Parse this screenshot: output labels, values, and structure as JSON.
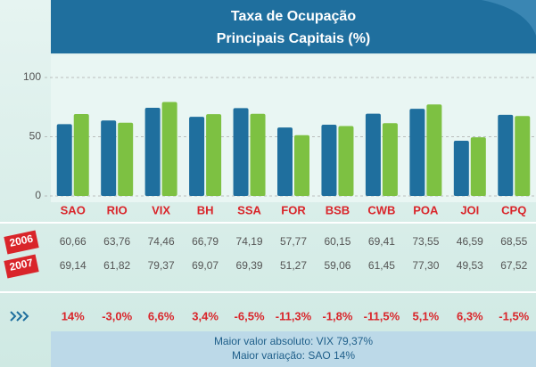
{
  "chart_data": {
    "type": "bar",
    "title": [
      "Taxa de Ocupação",
      "Principais Capitais (%)"
    ],
    "categories": [
      "SAO",
      "RIO",
      "VIX",
      "BH",
      "SSA",
      "FOR",
      "BSB",
      "CWB",
      "POA",
      "JOI",
      "CPQ"
    ],
    "series": [
      {
        "name": "2006",
        "color": "#1f6f9e",
        "values": [
          60.66,
          63.76,
          74.46,
          66.79,
          74.19,
          57.77,
          60.15,
          69.41,
          73.55,
          46.59,
          68.55
        ],
        "value_labels": [
          "60,66",
          "63,76",
          "74,46",
          "66,79",
          "74,19",
          "57,77",
          "60,15",
          "69,41",
          "73,55",
          "46,59",
          "68,55"
        ]
      },
      {
        "name": "2007",
        "color": "#7dc142",
        "values": [
          69.14,
          61.82,
          79.37,
          69.07,
          69.39,
          51.27,
          59.06,
          61.45,
          77.3,
          49.53,
          67.52
        ],
        "value_labels": [
          "69,14",
          "61,82",
          "79,37",
          "69,07",
          "69,39",
          "51,27",
          "59,06",
          "61,45",
          "77,30",
          "49,53",
          "67,52"
        ]
      }
    ],
    "variation": [
      "14%",
      "-3,0%",
      "6,6%",
      "3,4%",
      "-6,5%",
      "-11,3%",
      "-1,8%",
      "-11,5%",
      "5,1%",
      "6,3%",
      "-1,5%"
    ],
    "notes": [
      "Maior valor absoluto: VIX 79,37%",
      "Maior variação: SAO 14%"
    ],
    "ylim": [
      0,
      100
    ],
    "yticks": [
      0,
      50,
      100
    ],
    "grid": true
  }
}
